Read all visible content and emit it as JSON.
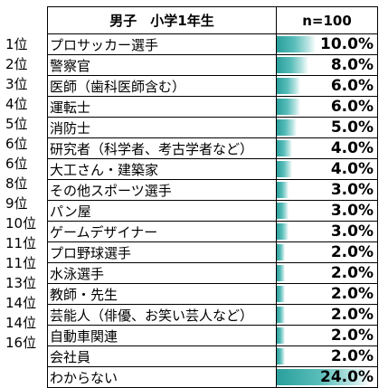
{
  "chart_data": {
    "type": "table",
    "header": {
      "category": "男子　小学1年生",
      "sample": "n=100"
    },
    "max_percent": 24.0,
    "rows": [
      {
        "rank": "1位",
        "label": "プロサッカー選手",
        "value": 10.0,
        "display": "10.0%"
      },
      {
        "rank": "2位",
        "label": "警察官",
        "value": 8.0,
        "display": "8.0%"
      },
      {
        "rank": "3位",
        "label": "医師（歯科医師含む）",
        "value": 6.0,
        "display": "6.0%"
      },
      {
        "rank": "4位",
        "label": "運転士",
        "value": 6.0,
        "display": "6.0%"
      },
      {
        "rank": "5位",
        "label": "消防士",
        "value": 5.0,
        "display": "5.0%"
      },
      {
        "rank": "6位",
        "label": "研究者（科学者、考古学者など）",
        "value": 4.0,
        "display": "4.0%"
      },
      {
        "rank": "6位",
        "label": "大工さん・建築家",
        "value": 4.0,
        "display": "4.0%"
      },
      {
        "rank": "8位",
        "label": "その他スポーツ選手",
        "value": 3.0,
        "display": "3.0%"
      },
      {
        "rank": "9位",
        "label": "パン屋",
        "value": 3.0,
        "display": "3.0%"
      },
      {
        "rank": "10位",
        "label": "ゲームデザイナー",
        "value": 3.0,
        "display": "3.0%"
      },
      {
        "rank": "11位",
        "label": "プロ野球選手",
        "value": 2.0,
        "display": "2.0%"
      },
      {
        "rank": "11位",
        "label": "水泳選手",
        "value": 2.0,
        "display": "2.0%"
      },
      {
        "rank": "13位",
        "label": "教師・先生",
        "value": 2.0,
        "display": "2.0%"
      },
      {
        "rank": "14位",
        "label": "芸能人（俳優、お笑い芸人など）",
        "value": 2.0,
        "display": "2.0%"
      },
      {
        "rank": "14位",
        "label": "自動車関連",
        "value": 2.0,
        "display": "2.0%"
      },
      {
        "rank": "16位",
        "label": "会社員",
        "value": 2.0,
        "display": "2.0%"
      },
      {
        "rank": "",
        "label": "わからない",
        "value": 24.0,
        "display": "24.0%"
      }
    ],
    "bar_color": "#2a9f9c"
  }
}
